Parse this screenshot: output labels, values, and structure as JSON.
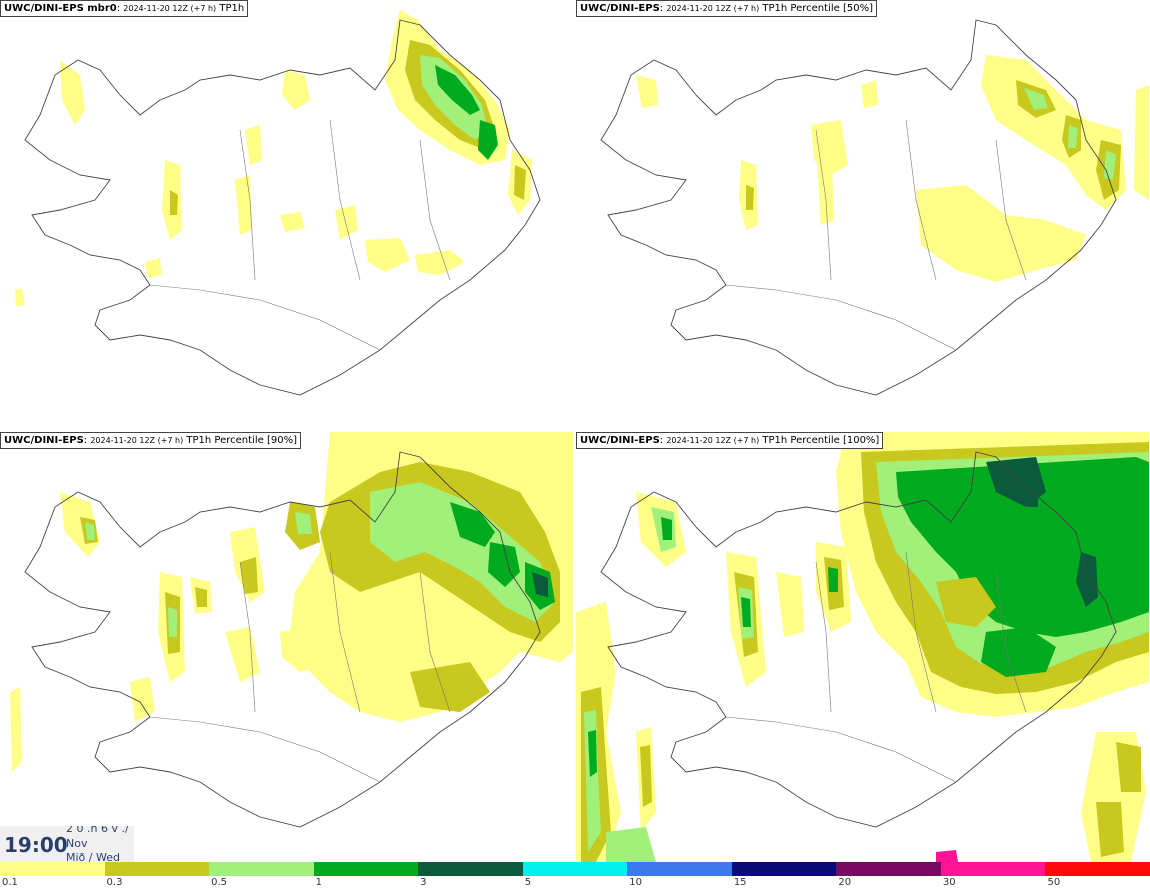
{
  "panels": [
    {
      "model": "UWC/DINI-EPS mbr0",
      "run": "2024-11-20 12Z (+7 h)",
      "param": "TP1h"
    },
    {
      "model": "UWC/DINI-EPS",
      "run": "2024-11-20 12Z (+7 h)",
      "param": "TP1h Percentile [50%]"
    },
    {
      "model": "UWC/DINI-EPS",
      "run": "2024-11-20 12Z (+7 h)",
      "param": "TP1h Percentile [90%]"
    },
    {
      "model": "UWC/DINI-EPS",
      "run": "2024-11-20 12Z (+7 h)",
      "param": "TP1h Percentile [100%]"
    }
  ],
  "clock": {
    "time": "19:00",
    "line1": "2 0 .h 6 v ./",
    "line2": "Nov",
    "line3": "Mið / Wed"
  },
  "legend": {
    "colors": [
      "#ffff88",
      "#c8c81e",
      "#a0f07a",
      "#00aa1e",
      "#0a5a3c",
      "#00f0f0",
      "#3c78f0",
      "#0a0a78",
      "#780a64",
      "#ff1496",
      "#ff0a0a"
    ],
    "ticks": [
      "0.1",
      "0.3",
      "0.5",
      "1",
      "3",
      "5",
      "10",
      "15",
      "20",
      "30",
      "50"
    ]
  }
}
